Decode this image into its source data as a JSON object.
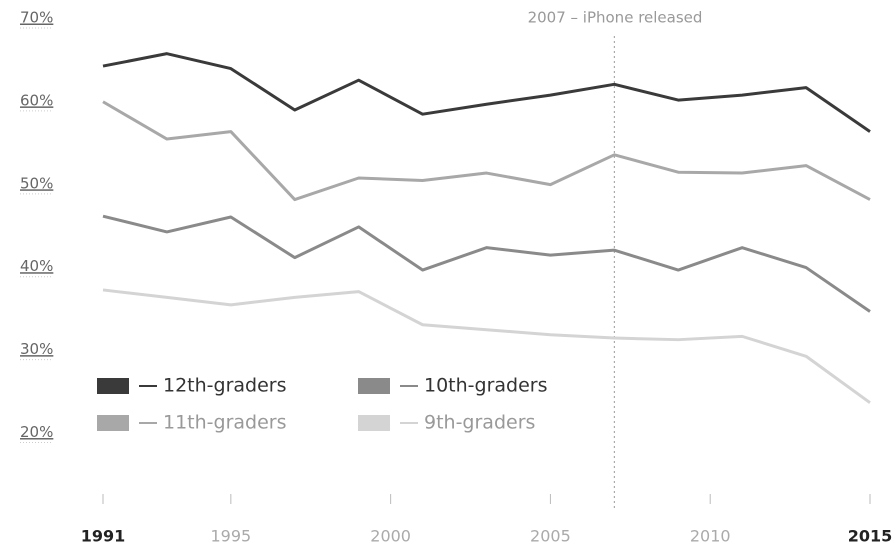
{
  "chart_data": {
    "type": "line",
    "x": [
      1991,
      1993,
      1995,
      1997,
      1999,
      2001,
      2003,
      2005,
      2007,
      2009,
      2011,
      2013,
      2015
    ],
    "series": [
      {
        "name": "12th-graders",
        "color": "#3a3a3a",
        "values": [
          64.2,
          65.7,
          63.9,
          58.9,
          62.5,
          58.4,
          59.6,
          60.7,
          62.0,
          60.1,
          60.7,
          61.6,
          56.3
        ]
      },
      {
        "name": "11th-graders",
        "color": "#a8a8a8",
        "values": [
          59.9,
          55.4,
          56.3,
          48.1,
          50.7,
          50.4,
          51.3,
          49.9,
          53.5,
          51.4,
          51.3,
          52.2,
          48.1
        ]
      },
      {
        "name": "10th-graders",
        "color": "#8a8a8a",
        "values": [
          46.1,
          44.2,
          46.0,
          41.1,
          44.8,
          39.6,
          42.3,
          41.4,
          42.0,
          39.6,
          42.3,
          39.9,
          34.6
        ]
      },
      {
        "name": "9th-graders",
        "color": "#d4d4d4",
        "values": [
          37.2,
          36.3,
          35.4,
          36.3,
          37.0,
          33.0,
          32.4,
          31.8,
          31.4,
          31.2,
          31.6,
          29.2,
          23.6
        ]
      }
    ],
    "xlim": [
      1991,
      2015
    ],
    "xticks": [
      1991,
      1995,
      2000,
      2005,
      2010,
      2015
    ],
    "ylim": [
      15,
      70
    ],
    "yticks": [
      {
        "value": 20,
        "label": "20%"
      },
      {
        "value": 30,
        "label": "30%"
      },
      {
        "value": 40,
        "label": "40%"
      },
      {
        "value": 50,
        "label": "50%"
      },
      {
        "value": 60,
        "label": "60%"
      },
      {
        "value": 70,
        "label": "70%"
      }
    ],
    "annotation": {
      "text": "2007 – iPhone released",
      "x": 2007
    },
    "legend": "lower left"
  }
}
